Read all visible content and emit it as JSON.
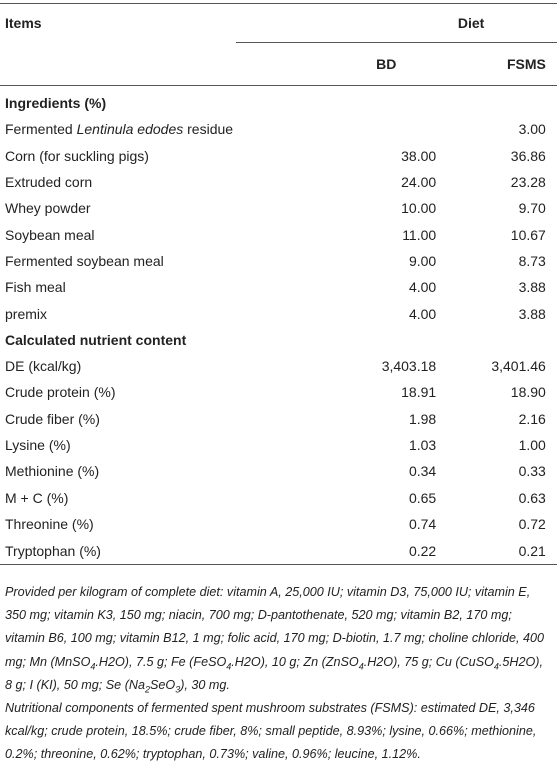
{
  "table": {
    "header": {
      "items": "Items",
      "diet": "Diet",
      "columns": [
        "BD",
        "FSMS"
      ]
    },
    "sections": [
      {
        "title": "Ingredients (%)",
        "rows": [
          {
            "label": [
              "Fermented ",
              {
                "italic": "Lentinula edodes"
              },
              " residue"
            ],
            "values": [
              null,
              "3.00"
            ]
          },
          {
            "label": [
              "Corn (for suckling pigs)"
            ],
            "values": [
              "38.00",
              "36.86"
            ]
          },
          {
            "label": [
              "Extruded corn"
            ],
            "values": [
              "24.00",
              "23.28"
            ]
          },
          {
            "label": [
              "Whey powder"
            ],
            "values": [
              "10.00",
              "9.70"
            ]
          },
          {
            "label": [
              "Soybean meal"
            ],
            "values": [
              "11.00",
              "10.67"
            ]
          },
          {
            "label": [
              "Fermented soybean meal"
            ],
            "values": [
              "9.00",
              "8.73"
            ]
          },
          {
            "label": [
              "Fish meal"
            ],
            "values": [
              "4.00",
              "3.88"
            ]
          },
          {
            "label": [
              "premix"
            ],
            "values": [
              "4.00",
              "3.88"
            ]
          }
        ]
      },
      {
        "title": "Calculated nutrient content",
        "rows": [
          {
            "label": [
              "DE (kcal/kg)"
            ],
            "values": [
              "3,403.18",
              "3,401.46"
            ]
          },
          {
            "label": [
              "Crude protein (%)"
            ],
            "values": [
              "18.91",
              "18.90"
            ]
          },
          {
            "label": [
              "Crude fiber (%)"
            ],
            "values": [
              "1.98",
              "2.16"
            ]
          },
          {
            "label": [
              "Lysine (%)"
            ],
            "values": [
              "1.03",
              "1.00"
            ]
          },
          {
            "label": [
              "Methionine (%)"
            ],
            "values": [
              "0.34",
              "0.33"
            ]
          },
          {
            "label": [
              "M + C (%)"
            ],
            "values": [
              "0.65",
              "0.63"
            ]
          },
          {
            "label": [
              "Threonine (%)"
            ],
            "values": [
              "0.74",
              "0.72"
            ]
          },
          {
            "label": [
              "Tryptophan (%)"
            ],
            "values": [
              "0.22",
              "0.21"
            ]
          }
        ]
      }
    ]
  },
  "notes": [
    [
      "Provided per kilogram of complete diet: vitamin A, 25,000 IU; vitamin D3, 75,000 IU; vitamin E, 350 mg; vitamin K3, 150 mg; niacin, 700 mg; D-pantothenate, 520 mg; vitamin B2, 170 mg; vitamin B6, 100 mg; vitamin B12, 1 mg; folic acid, 170 mg; D-biotin, 1.7 mg; choline chloride, 400 mg; Mn (MnSO",
      {
        "sub": "4"
      },
      ".H2O), 7.5 g; Fe (FeSO",
      {
        "sub": "4"
      },
      ".H2O), 10 g; Zn (ZnSO",
      {
        "sub": "4"
      },
      ".H2O), 75 g; Cu (CuSO",
      {
        "sub": "4"
      },
      ".5H2O), 8 g; I (KI), 50 mg; Se (Na",
      {
        "sub": "2"
      },
      "SeO",
      {
        "sub": "3"
      },
      "), 30 mg."
    ],
    [
      "Nutritional components of fermented spent mushroom substrates (FSMS): estimated DE, 3,346 kcal/kg; crude protein, 18.5%; crude fiber, 8%; small peptide, 8.93%; lysine, 0.66%; methionine, 0.2%; threonine, 0.62%; tryptophan, 0.73%; valine, 0.96%; leucine, 1.12%."
    ]
  ]
}
